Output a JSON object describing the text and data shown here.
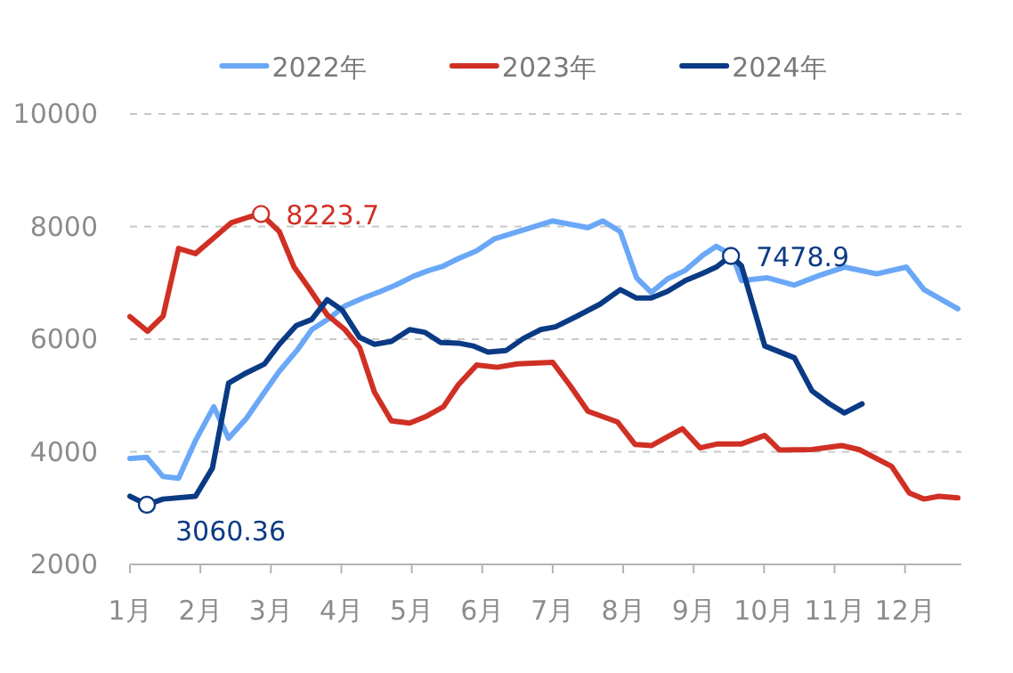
{
  "chart_data": {
    "type": "line",
    "legend": "top",
    "grid": "y",
    "line_style": "solid",
    "marker": "none",
    "xlim": [
      1,
      12.8
    ],
    "ylim": [
      2000,
      10000
    ],
    "xticks": [
      {
        "value": 1,
        "label": "1月"
      },
      {
        "value": 2,
        "label": "2月"
      },
      {
        "value": 3,
        "label": "3月"
      },
      {
        "value": 4,
        "label": "4月"
      },
      {
        "value": 5,
        "label": "5月"
      },
      {
        "value": 6,
        "label": "6月"
      },
      {
        "value": 7,
        "label": "7月"
      },
      {
        "value": 8,
        "label": "8月"
      },
      {
        "value": 9,
        "label": "9月"
      },
      {
        "value": 10,
        "label": "10月"
      },
      {
        "value": 11,
        "label": "11月"
      },
      {
        "value": 12,
        "label": "12月"
      }
    ],
    "yticks": [
      2000,
      4000,
      6000,
      8000,
      10000
    ],
    "series": [
      {
        "name": "2022年",
        "color": "#6aa8f7",
        "x": [
          1.0,
          1.24,
          1.47,
          1.69,
          1.93,
          2.19,
          2.4,
          2.65,
          2.91,
          3.12,
          3.37,
          3.58,
          3.84,
          4.05,
          4.31,
          4.56,
          4.77,
          5.03,
          5.24,
          5.45,
          5.66,
          5.92,
          6.17,
          6.51,
          7.0,
          7.5,
          7.71,
          7.96,
          8.19,
          8.4,
          8.63,
          8.88,
          9.13,
          9.32,
          9.55,
          9.68,
          10.05,
          10.43,
          10.76,
          11.14,
          11.6,
          12.02,
          12.27,
          12.75
        ],
        "values": [
          3880,
          3900,
          3560,
          3530,
          4200,
          4800,
          4240,
          4590,
          5060,
          5430,
          5800,
          6170,
          6380,
          6590,
          6730,
          6850,
          6960,
          7120,
          7220,
          7300,
          7430,
          7570,
          7780,
          7910,
          8100,
          7980,
          8100,
          7910,
          7090,
          6830,
          7070,
          7220,
          7490,
          7650,
          7490,
          7040,
          7090,
          6960,
          7120,
          7280,
          7160,
          7280,
          6880,
          6540
        ]
      },
      {
        "name": "2023年",
        "color": "#d03024",
        "x": [
          1.0,
          1.25,
          1.47,
          1.69,
          1.93,
          2.19,
          2.44,
          2.69,
          2.86,
          3.12,
          3.33,
          3.54,
          3.8,
          4.05,
          4.26,
          4.47,
          4.71,
          4.97,
          5.19,
          5.45,
          5.66,
          5.92,
          6.21,
          6.5,
          7.0,
          7.25,
          7.5,
          7.92,
          8.17,
          8.4,
          8.84,
          9.09,
          9.34,
          9.68,
          10.01,
          10.22,
          10.68,
          11.1,
          11.35,
          11.81,
          12.06,
          12.27,
          12.48,
          12.75
        ],
        "values": [
          6400,
          6140,
          6410,
          7610,
          7520,
          7800,
          8070,
          8170,
          8223.7,
          7910,
          7280,
          6910,
          6430,
          6170,
          5850,
          5060,
          4550,
          4510,
          4620,
          4800,
          5190,
          5540,
          5500,
          5560,
          5590,
          5170,
          4720,
          4530,
          4130,
          4110,
          4410,
          4070,
          4140,
          4140,
          4290,
          4030,
          4040,
          4110,
          4040,
          3740,
          3270,
          3160,
          3210,
          3180
        ]
      },
      {
        "name": "2024年",
        "color": "#0a3a84",
        "x": [
          1.0,
          1.24,
          1.47,
          1.93,
          2.17,
          2.4,
          2.65,
          2.91,
          3.12,
          3.36,
          3.58,
          3.8,
          4.01,
          4.26,
          4.47,
          4.71,
          4.97,
          5.19,
          5.41,
          5.66,
          5.87,
          6.08,
          6.34,
          6.58,
          6.83,
          7.04,
          7.33,
          7.67,
          7.96,
          8.19,
          8.4,
          8.63,
          8.88,
          9.13,
          9.32,
          9.53,
          9.68,
          10.01,
          10.43,
          10.68,
          10.93,
          11.14,
          11.39
        ],
        "values": [
          3210,
          3060.36,
          3160,
          3210,
          3710,
          5220,
          5400,
          5560,
          5910,
          6240,
          6350,
          6700,
          6520,
          6030,
          5910,
          5960,
          6170,
          6120,
          5940,
          5930,
          5880,
          5770,
          5800,
          6010,
          6170,
          6220,
          6400,
          6620,
          6880,
          6730,
          6730,
          6850,
          7040,
          7170,
          7280,
          7478.9,
          7300,
          5880,
          5670,
          5080,
          4850,
          4690,
          4850
        ]
      }
    ],
    "annotations": [
      {
        "text": "8223.7",
        "x": 2.86,
        "y": 8223.7
      },
      {
        "text": "3060.36",
        "x": 1.24,
        "y": 3060.36
      },
      {
        "text": "7478.9",
        "x": 9.53,
        "y": 7478.9
      }
    ]
  }
}
